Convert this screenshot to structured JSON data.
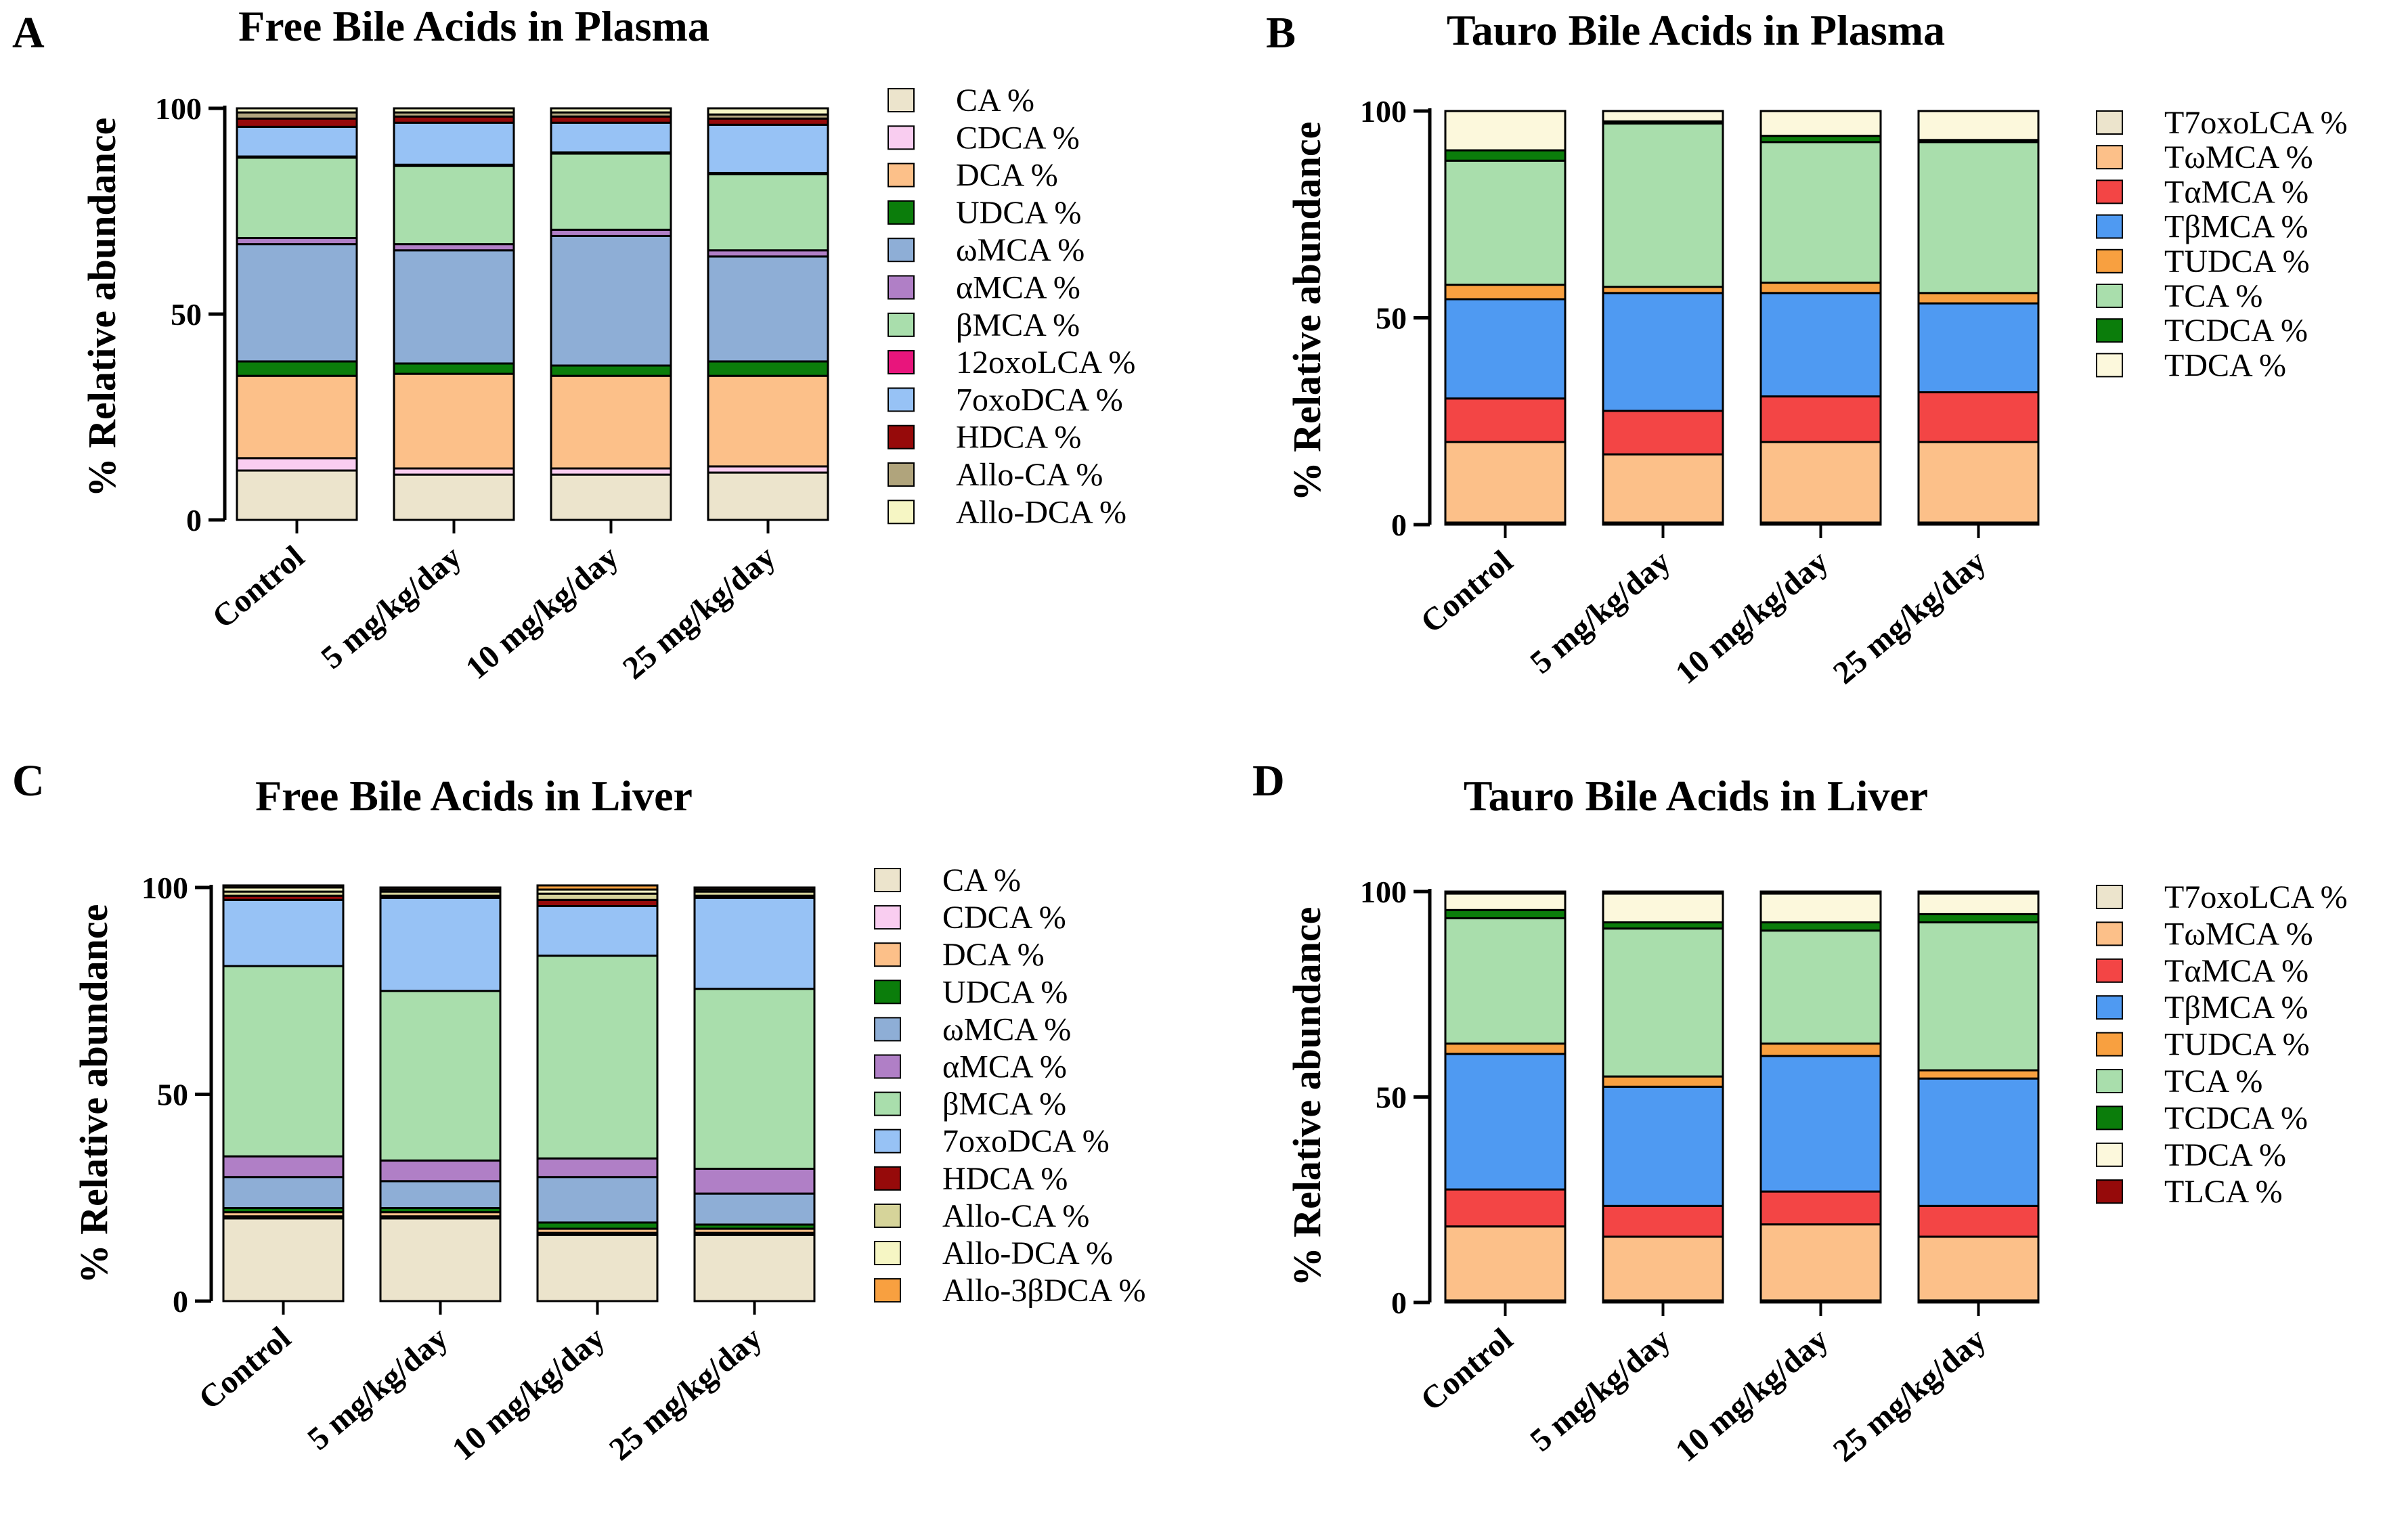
{
  "chart_data": [
    {
      "panel": "A",
      "type": "bar",
      "stacked": true,
      "title": "Free Bile Acids in Plasma",
      "ylabel": "% Relative abundance",
      "xlabel": "",
      "ylim": [
        0,
        100
      ],
      "yticks": [
        "0",
        "50",
        "100"
      ],
      "categories": [
        "Control",
        "5 mg/kg/day",
        "10 mg/kg/day",
        "25 mg/kg/day"
      ],
      "series": [
        {
          "name": "CA %",
          "color": "#ece4cc",
          "values": [
            12,
            11,
            11,
            11.5
          ]
        },
        {
          "name": "CDCA %",
          "color": "#f9cdf0",
          "values": [
            3,
            1.5,
            1.5,
            1.5
          ]
        },
        {
          "name": "DCA %",
          "color": "#fcc089",
          "values": [
            20,
            23,
            22.5,
            22
          ]
        },
        {
          "name": "UDCA %",
          "color": "#0b7d0b",
          "values": [
            3.5,
            2.5,
            2.5,
            3.5
          ]
        },
        {
          "name": "ωMCA %",
          "color": "#8eaed6",
          "values": [
            28.5,
            27.5,
            31.5,
            25.5
          ]
        },
        {
          "name": "αMCA %",
          "color": "#b07fc6",
          "values": [
            1.5,
            1.5,
            1.5,
            1.5
          ]
        },
        {
          "name": "βMCA %",
          "color": "#a9deac",
          "values": [
            19.5,
            19,
            18.5,
            18.5
          ]
        },
        {
          "name": "12oxoLCA %",
          "color": "#e8157c",
          "values": [
            0.3,
            0.3,
            0.3,
            0.3
          ]
        },
        {
          "name": "7oxoDCA %",
          "color": "#97c2f5",
          "values": [
            7.2,
            10.2,
            7.2,
            11.7
          ]
        },
        {
          "name": "HDCA %",
          "color": "#960a0a",
          "values": [
            2,
            1.5,
            1.5,
            1.5
          ]
        },
        {
          "name": "Allo-CA %",
          "color": "#b0a47c",
          "values": [
            1.5,
            1,
            1,
            1
          ]
        },
        {
          "name": "Allo-DCA %",
          "color": "#f6f6c4",
          "values": [
            1,
            1,
            1,
            1.5
          ]
        }
      ]
    },
    {
      "panel": "B",
      "type": "bar",
      "stacked": true,
      "title": "Tauro Bile Acids in Plasma",
      "ylabel": "% Relative abundance",
      "xlabel": "",
      "ylim": [
        0,
        100
      ],
      "yticks": [
        "0",
        "50",
        "100"
      ],
      "categories": [
        "Control",
        "5 mg/kg/day",
        "10 mg/kg/day",
        "25 mg/kg/day"
      ],
      "series": [
        {
          "name": "T7oxoLCA %",
          "color": "#ece4cc",
          "values": [
            0.5,
            0.5,
            0.5,
            0.5
          ]
        },
        {
          "name": "TωMCA %",
          "color": "#fcc089",
          "values": [
            19.5,
            16.5,
            19.5,
            19.5
          ]
        },
        {
          "name": "TαMCA %",
          "color": "#f34545",
          "values": [
            10.5,
            10.5,
            11,
            12
          ]
        },
        {
          "name": "TβMCA %",
          "color": "#4f9af2",
          "values": [
            24,
            28.5,
            25,
            21.5
          ]
        },
        {
          "name": "TUDCA %",
          "color": "#f8a040",
          "values": [
            3.5,
            1.5,
            2.5,
            2.5
          ]
        },
        {
          "name": "TCA %",
          "color": "#a9deac",
          "values": [
            30,
            39.5,
            34,
            36.5
          ]
        },
        {
          "name": "TCDCA %",
          "color": "#0b7d0b",
          "values": [
            2.5,
            0.5,
            1.5,
            0.5
          ]
        },
        {
          "name": "TDCA %",
          "color": "#fcf8dc",
          "values": [
            9.5,
            2.5,
            6,
            7
          ]
        }
      ]
    },
    {
      "panel": "C",
      "type": "bar",
      "stacked": true,
      "title": "Free Bile Acids in Liver",
      "ylabel": "% Relative abundance",
      "xlabel": "",
      "ylim": [
        0,
        100
      ],
      "yticks": [
        "0",
        "50",
        "100"
      ],
      "categories": [
        "Control",
        "5 mg/kg/day",
        "10 mg/kg/day",
        "25 mg/kg/day"
      ],
      "series": [
        {
          "name": "CA %",
          "color": "#ece4cc",
          "values": [
            20,
            20,
            16,
            16
          ]
        },
        {
          "name": "CDCA %",
          "color": "#f9cdf0",
          "values": [
            0.5,
            0.5,
            0.5,
            0.5
          ]
        },
        {
          "name": "DCA %",
          "color": "#fcc089",
          "values": [
            1,
            1,
            1,
            1
          ]
        },
        {
          "name": "UDCA %",
          "color": "#0b7d0b",
          "values": [
            1,
            1,
            1.5,
            1
          ]
        },
        {
          "name": "ωMCA %",
          "color": "#8eaed6",
          "values": [
            7.5,
            6.5,
            11,
            7.5
          ]
        },
        {
          "name": "αMCA %",
          "color": "#b07fc6",
          "values": [
            5,
            5,
            4.5,
            6
          ]
        },
        {
          "name": "βMCA %",
          "color": "#a9deac",
          "values": [
            46,
            41,
            49,
            43.5
          ]
        },
        {
          "name": "7oxoDCA %",
          "color": "#97c2f5",
          "values": [
            16,
            22.5,
            12,
            22
          ]
        },
        {
          "name": "HDCA %",
          "color": "#960a0a",
          "values": [
            1,
            0.5,
            1.5,
            0.5
          ]
        },
        {
          "name": "Allo-CA %",
          "color": "#d6d49a",
          "values": [
            1,
            1,
            1.5,
            1
          ]
        },
        {
          "name": "Allo-DCA %",
          "color": "#f6f6c4",
          "values": [
            1,
            0.5,
            1,
            0.5
          ]
        },
        {
          "name": "Allo-3βDCA %",
          "color": "#f8a040",
          "values": [
            0.5,
            0.5,
            1,
            0.5
          ]
        }
      ]
    },
    {
      "panel": "D",
      "type": "bar",
      "stacked": true,
      "title": "Tauro Bile Acids in Liver",
      "ylabel": "% Relative abundance",
      "xlabel": "",
      "ylim": [
        0,
        100
      ],
      "yticks": [
        "0",
        "50",
        "100"
      ],
      "categories": [
        "Control",
        "5 mg/kg/day",
        "10 mg/kg/day",
        "25 mg/kg/day"
      ],
      "series": [
        {
          "name": "T7oxoLCA %",
          "color": "#ece4cc",
          "values": [
            0.5,
            0.5,
            0.5,
            0.5
          ]
        },
        {
          "name": "TωMCA %",
          "color": "#fcc089",
          "values": [
            18,
            15.5,
            18.5,
            15.5
          ]
        },
        {
          "name": "TαMCA %",
          "color": "#f34545",
          "values": [
            9,
            7.5,
            8,
            7.5
          ]
        },
        {
          "name": "TβMCA %",
          "color": "#4f9af2",
          "values": [
            33,
            29,
            33,
            31
          ]
        },
        {
          "name": "TUDCA %",
          "color": "#f8a040",
          "values": [
            2.5,
            2.5,
            3,
            2
          ]
        },
        {
          "name": "TCA %",
          "color": "#a9deac",
          "values": [
            30.5,
            36,
            27.5,
            36
          ]
        },
        {
          "name": "TCDCA %",
          "color": "#0b7d0b",
          "values": [
            2,
            1.5,
            2,
            2
          ]
        },
        {
          "name": "TDCA %",
          "color": "#fcf8dc",
          "values": [
            4,
            7,
            7,
            5
          ]
        },
        {
          "name": "TLCA %",
          "color": "#960a0a",
          "values": [
            0.5,
            0.5,
            0.5,
            0.5
          ]
        }
      ]
    }
  ]
}
